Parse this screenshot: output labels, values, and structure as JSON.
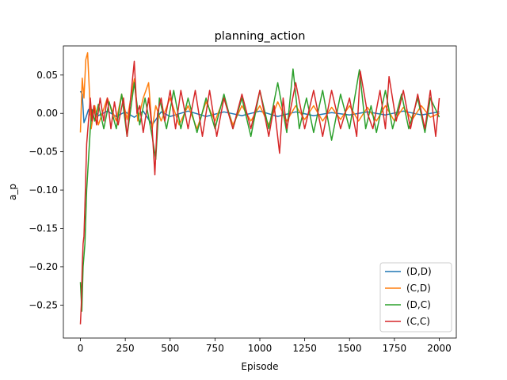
{
  "chart_data": {
    "type": "line",
    "title": "planning_action",
    "xlabel": "Episode",
    "ylabel": "a_p",
    "xlim": [
      -95,
      2095
    ],
    "ylim": [
      -0.293,
      0.088
    ],
    "xticks": [
      0,
      250,
      500,
      750,
      1000,
      1250,
      1500,
      1750,
      2000
    ],
    "xtick_labels": [
      "0",
      "250",
      "500",
      "750",
      "1000",
      "1250",
      "1500",
      "1750",
      "2000"
    ],
    "yticks": [
      -0.25,
      -0.2,
      -0.15,
      -0.1,
      -0.05,
      0.0,
      0.05
    ],
    "ytick_labels": [
      "−0.25",
      "−0.20",
      "−0.15",
      "−0.10",
      "−0.05",
      "0.00",
      "0.05"
    ],
    "grid": false,
    "legend_position": "lower-right",
    "series": [
      {
        "name": "(D,D)",
        "color": "#1f77b4",
        "points": [
          [
            0,
            0.029
          ],
          [
            10,
            0.025
          ],
          [
            20,
            -0.012
          ],
          [
            30,
            -0.006
          ],
          [
            45,
            0.005
          ],
          [
            60,
            -0.006
          ],
          [
            80,
            0.004
          ],
          [
            100,
            -0.003
          ],
          [
            150,
            0.003
          ],
          [
            200,
            -0.004
          ],
          [
            250,
            0.002
          ],
          [
            300,
            -0.005
          ],
          [
            350,
            0.003
          ],
          [
            400,
            -0.015
          ],
          [
            450,
            0.002
          ],
          [
            500,
            -0.004
          ],
          [
            600,
            0.003
          ],
          [
            700,
            -0.004
          ],
          [
            800,
            0.002
          ],
          [
            900,
            -0.003
          ],
          [
            1000,
            0.003
          ],
          [
            1100,
            -0.004
          ],
          [
            1200,
            0.002
          ],
          [
            1300,
            -0.003
          ],
          [
            1400,
            0.001
          ],
          [
            1500,
            -0.002
          ],
          [
            1600,
            0.002
          ],
          [
            1700,
            -0.002
          ],
          [
            1800,
            0.003
          ],
          [
            1900,
            -0.002
          ],
          [
            2000,
            0.002
          ]
        ]
      },
      {
        "name": "(C,D)",
        "color": "#ff7f0e",
        "points": [
          [
            0,
            -0.025
          ],
          [
            10,
            0.046
          ],
          [
            20,
            0.02
          ],
          [
            30,
            0.07
          ],
          [
            40,
            0.079
          ],
          [
            50,
            0.03
          ],
          [
            60,
            -0.02
          ],
          [
            80,
            0.01
          ],
          [
            100,
            -0.015
          ],
          [
            150,
            0.02
          ],
          [
            200,
            -0.01
          ],
          [
            230,
            0.025
          ],
          [
            260,
            -0.008
          ],
          [
            300,
            0.045
          ],
          [
            320,
            -0.01
          ],
          [
            350,
            0.02
          ],
          [
            380,
            0.04
          ],
          [
            400,
            -0.02
          ],
          [
            420,
            0.01
          ],
          [
            450,
            -0.01
          ],
          [
            500,
            0.02
          ],
          [
            550,
            -0.015
          ],
          [
            600,
            0.01
          ],
          [
            650,
            -0.02
          ],
          [
            700,
            0.015
          ],
          [
            750,
            -0.01
          ],
          [
            800,
            0.02
          ],
          [
            850,
            -0.015
          ],
          [
            900,
            0.01
          ],
          [
            950,
            -0.01
          ],
          [
            1000,
            0.01
          ],
          [
            1050,
            -0.015
          ],
          [
            1100,
            0.015
          ],
          [
            1150,
            -0.01
          ],
          [
            1200,
            0.01
          ],
          [
            1250,
            -0.008
          ],
          [
            1300,
            0.01
          ],
          [
            1350,
            -0.01
          ],
          [
            1400,
            0.008
          ],
          [
            1450,
            -0.008
          ],
          [
            1500,
            0.01
          ],
          [
            1550,
            -0.01
          ],
          [
            1600,
            0.008
          ],
          [
            1650,
            -0.01
          ],
          [
            1700,
            0.01
          ],
          [
            1750,
            -0.01
          ],
          [
            1800,
            0.008
          ],
          [
            1850,
            -0.008
          ],
          [
            1900,
            0.01
          ],
          [
            1950,
            -0.005
          ],
          [
            2000,
            0.0
          ]
        ]
      },
      {
        "name": "(D,C)",
        "color": "#2ca02c",
        "points": [
          [
            0,
            -0.22
          ],
          [
            8,
            -0.258
          ],
          [
            15,
            -0.2
          ],
          [
            25,
            -0.17
          ],
          [
            35,
            -0.1
          ],
          [
            45,
            -0.06
          ],
          [
            55,
            -0.02
          ],
          [
            65,
            0.005
          ],
          [
            80,
            -0.01
          ],
          [
            100,
            0.012
          ],
          [
            130,
            -0.02
          ],
          [
            160,
            0.015
          ],
          [
            200,
            -0.02
          ],
          [
            230,
            0.025
          ],
          [
            260,
            -0.03
          ],
          [
            300,
            0.04
          ],
          [
            330,
            -0.015
          ],
          [
            360,
            0.02
          ],
          [
            400,
            -0.03
          ],
          [
            420,
            -0.06
          ],
          [
            440,
            0.02
          ],
          [
            480,
            -0.02
          ],
          [
            520,
            0.03
          ],
          [
            560,
            -0.02
          ],
          [
            600,
            0.02
          ],
          [
            650,
            -0.025
          ],
          [
            700,
            0.02
          ],
          [
            750,
            -0.02
          ],
          [
            800,
            0.025
          ],
          [
            850,
            -0.02
          ],
          [
            900,
            0.02
          ],
          [
            950,
            -0.03
          ],
          [
            1000,
            0.03
          ],
          [
            1050,
            -0.02
          ],
          [
            1100,
            0.04
          ],
          [
            1150,
            -0.025
          ],
          [
            1185,
            0.058
          ],
          [
            1220,
            -0.02
          ],
          [
            1260,
            0.02
          ],
          [
            1300,
            -0.025
          ],
          [
            1350,
            0.03
          ],
          [
            1400,
            -0.035
          ],
          [
            1450,
            0.025
          ],
          [
            1500,
            -0.02
          ],
          [
            1555,
            0.057
          ],
          [
            1590,
            -0.02
          ],
          [
            1620,
            0.01
          ],
          [
            1650,
            -0.025
          ],
          [
            1700,
            0.03
          ],
          [
            1740,
            -0.02
          ],
          [
            1790,
            0.025
          ],
          [
            1830,
            -0.02
          ],
          [
            1880,
            0.02
          ],
          [
            1920,
            -0.025
          ],
          [
            1950,
            0.02
          ],
          [
            2000,
            -0.005
          ]
        ]
      },
      {
        "name": "(C,C)",
        "color": "#d62728",
        "points": [
          [
            0,
            -0.275
          ],
          [
            5,
            -0.25
          ],
          [
            10,
            -0.2
          ],
          [
            15,
            -0.17
          ],
          [
            20,
            -0.16
          ],
          [
            25,
            -0.12
          ],
          [
            30,
            -0.08
          ],
          [
            35,
            -0.04
          ],
          [
            45,
            -0.01
          ],
          [
            55,
            0.02
          ],
          [
            65,
            -0.01
          ],
          [
            75,
            0.01
          ],
          [
            90,
            -0.015
          ],
          [
            110,
            0.02
          ],
          [
            130,
            -0.01
          ],
          [
            150,
            0.02
          ],
          [
            170,
            -0.02
          ],
          [
            190,
            0.015
          ],
          [
            210,
            -0.015
          ],
          [
            240,
            0.02
          ],
          [
            260,
            -0.03
          ],
          [
            280,
            0.02
          ],
          [
            300,
            0.068
          ],
          [
            315,
            0.0
          ],
          [
            330,
            0.01
          ],
          [
            350,
            -0.025
          ],
          [
            380,
            0.02
          ],
          [
            400,
            -0.02
          ],
          [
            415,
            -0.08
          ],
          [
            430,
            0.0
          ],
          [
            450,
            0.02
          ],
          [
            470,
            -0.01
          ],
          [
            500,
            0.03
          ],
          [
            530,
            -0.02
          ],
          [
            560,
            0.03
          ],
          [
            600,
            -0.02
          ],
          [
            640,
            0.03
          ],
          [
            680,
            -0.03
          ],
          [
            720,
            0.03
          ],
          [
            760,
            -0.03
          ],
          [
            800,
            0.02
          ],
          [
            850,
            -0.02
          ],
          [
            900,
            0.025
          ],
          [
            950,
            -0.02
          ],
          [
            1000,
            0.03
          ],
          [
            1050,
            -0.03
          ],
          [
            1080,
            0.01
          ],
          [
            1110,
            -0.052
          ],
          [
            1130,
            0.02
          ],
          [
            1150,
            -0.02
          ],
          [
            1200,
            0.04
          ],
          [
            1250,
            -0.02
          ],
          [
            1300,
            0.03
          ],
          [
            1350,
            -0.03
          ],
          [
            1400,
            0.03
          ],
          [
            1450,
            -0.02
          ],
          [
            1500,
            0.02
          ],
          [
            1540,
            -0.03
          ],
          [
            1560,
            0.055
          ],
          [
            1600,
            0.0
          ],
          [
            1630,
            -0.02
          ],
          [
            1670,
            0.03
          ],
          [
            1700,
            -0.02
          ],
          [
            1720,
            0.048
          ],
          [
            1760,
            -0.01
          ],
          [
            1800,
            0.03
          ],
          [
            1840,
            -0.02
          ],
          [
            1880,
            0.025
          ],
          [
            1920,
            -0.02
          ],
          [
            1950,
            0.03
          ],
          [
            1980,
            -0.03
          ],
          [
            2000,
            0.02
          ]
        ]
      }
    ]
  }
}
